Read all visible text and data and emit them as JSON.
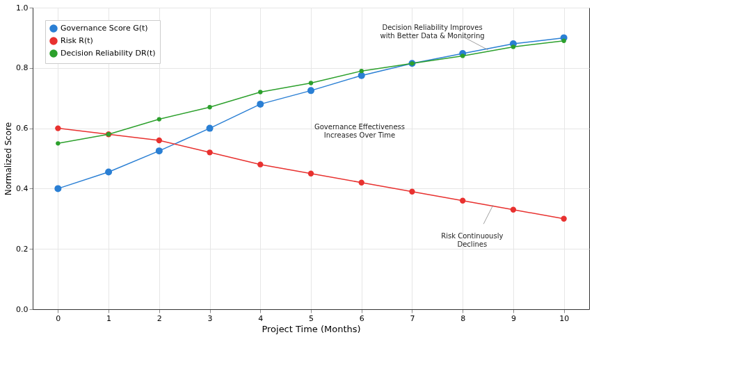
{
  "chart_data": {
    "type": "line",
    "xlabel": "Project Time (Months)",
    "ylabel": "Normalized Score",
    "x": [
      0,
      1,
      2,
      3,
      4,
      5,
      6,
      7,
      8,
      9,
      10
    ],
    "series": [
      {
        "name": "Governance Score G(t)",
        "color": "#2a7fd4",
        "values": [
          0.4,
          0.455,
          0.525,
          0.6,
          0.68,
          0.725,
          0.775,
          0.815,
          0.848,
          0.88,
          0.9
        ]
      },
      {
        "name": "Risk R(t)",
        "color": "#e8312f",
        "values": [
          0.6,
          0.58,
          0.56,
          0.52,
          0.48,
          0.45,
          0.42,
          0.39,
          0.36,
          0.33,
          0.3
        ]
      },
      {
        "name": "Decision Reliability DR(t)",
        "color": "#2ca02c",
        "values": [
          0.55,
          0.58,
          0.63,
          0.67,
          0.72,
          0.75,
          0.79,
          0.815,
          0.84,
          0.87,
          0.89
        ]
      }
    ],
    "xlim": [
      -0.5,
      10.5
    ],
    "xticks": [
      0,
      1,
      2,
      3,
      4,
      5,
      6,
      7,
      8,
      9,
      10
    ],
    "ylim": [
      0,
      1
    ],
    "yticks": [
      {
        "value": 0,
        "label": "0.0"
      },
      {
        "value": 0.2,
        "label": "0.2"
      },
      {
        "value": 0.4,
        "label": "0.4"
      },
      {
        "value": 0.6,
        "label": "0.6"
      },
      {
        "value": 0.8,
        "label": "0.8"
      },
      {
        "value": 1,
        "label": "1.0"
      }
    ],
    "annotations": [
      {
        "text": "Decision Reliability Improves\nwith Better Data & Monitoring",
        "x": 8.5,
        "y": 0.86
      },
      "Governance Effectiveness\nIncreases Over Time",
      {
        "text": "Risk Continuously\nDeclines",
        "x": 8.6,
        "y": 0.345
      }
    ],
    "grid": true,
    "legend": "top left",
    "marker": "circle",
    "line_style": "solid"
  }
}
